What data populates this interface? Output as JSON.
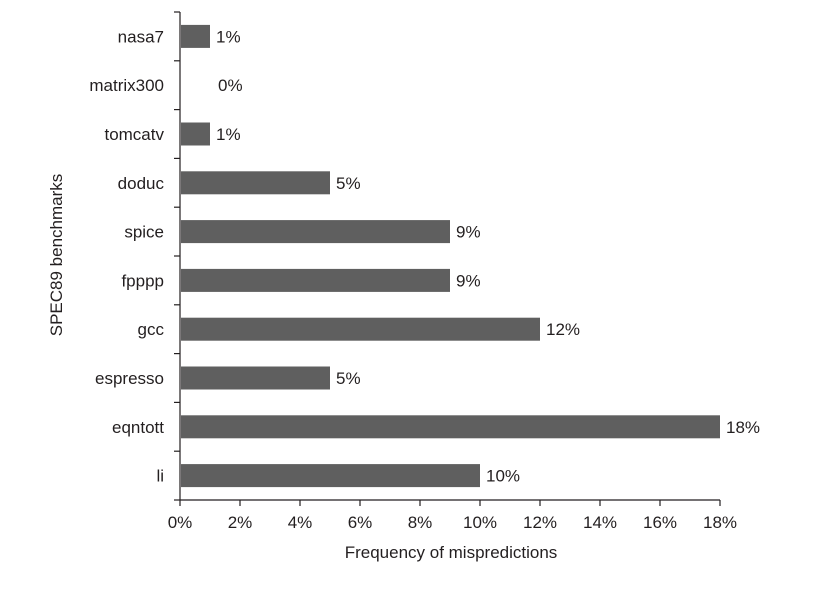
{
  "chart_data": {
    "type": "bar",
    "orientation": "horizontal",
    "categories": [
      "nasa7",
      "matrix300",
      "tomcatv",
      "doduc",
      "spice",
      "fpppp",
      "gcc",
      "espresso",
      "eqntott",
      "li"
    ],
    "values": [
      1,
      0,
      1,
      5,
      9,
      9,
      12,
      5,
      18,
      10
    ],
    "data_labels": [
      "1%",
      "0%",
      "1%",
      "5%",
      "9%",
      "9%",
      "12%",
      "5%",
      "18%",
      "10%"
    ],
    "x_ticks": [
      0,
      2,
      4,
      6,
      8,
      10,
      12,
      14,
      16,
      18
    ],
    "x_tick_labels": [
      "0%",
      "2%",
      "4%",
      "6%",
      "8%",
      "10%",
      "12%",
      "14%",
      "16%",
      "18%"
    ],
    "xlim": [
      0,
      18
    ],
    "xlabel": "Frequency of mispredictions",
    "ylabel": "SPEC89 benchmarks",
    "title": "",
    "grid": false,
    "legend": "none",
    "bar_color": "#5f5f5f",
    "axis_color": "#231f20",
    "text_color": "#231f20"
  }
}
